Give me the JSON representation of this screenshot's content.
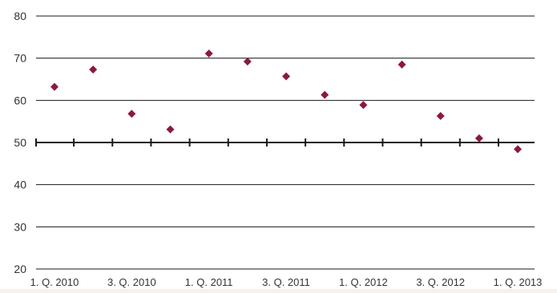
{
  "colors": {
    "background": "#f4f1ee",
    "plot_background": "#ffffff",
    "marker": "#8b1a3b",
    "grid": "#1a1a1a",
    "text": "#333333"
  },
  "chart_data": {
    "type": "scatter",
    "title": "",
    "xlabel": "",
    "ylabel": "",
    "ylim": [
      20,
      80
    ],
    "yticks": [
      20,
      30,
      40,
      50,
      60,
      70,
      80
    ],
    "x_axis_at": 50,
    "grid": "horizontal",
    "marker": "diamond",
    "categories": [
      "1. Q. 2010",
      "",
      "3. Q. 2010",
      "",
      "1. Q. 2011",
      "",
      "3. Q. 2011",
      "",
      "1. Q. 2012",
      "",
      "3. Q. 2012",
      "",
      "1. Q. 2013"
    ],
    "values": [
      63.2,
      67.3,
      56.8,
      53.1,
      71.1,
      69.2,
      65.7,
      61.3,
      58.9,
      68.5,
      56.3,
      51.0,
      48.4
    ]
  }
}
